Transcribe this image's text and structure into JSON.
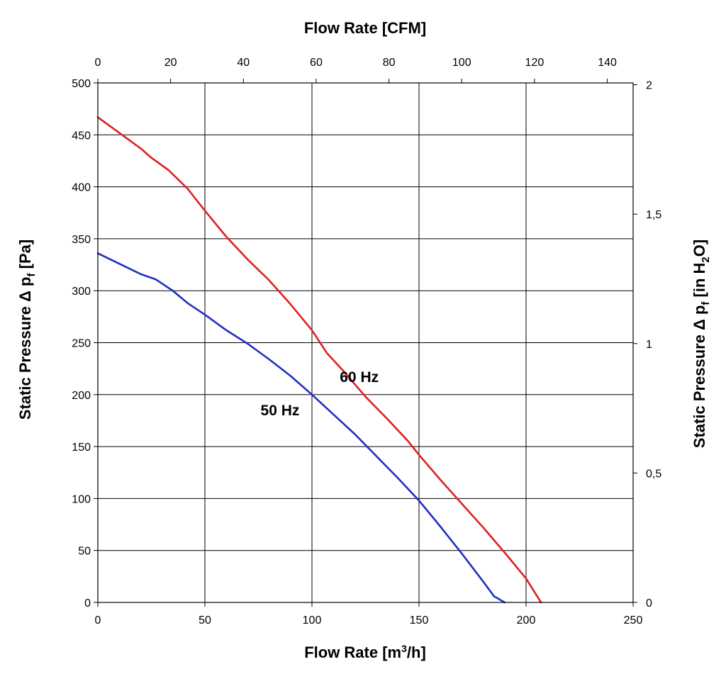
{
  "chart_data": {
    "type": "line",
    "title": "",
    "xlabel": "Flow Rate [m³/h]",
    "xlabel_parts": {
      "pre": "Flow Rate [m",
      "sup": "3",
      "post": "/h]"
    },
    "x2label": "Flow Rate [CFM]",
    "ylabel": "Static Pressure Δ pf [Pa]",
    "ylabel_parts": {
      "pre": "Static Pressure Δ p",
      "sub": "f",
      "post": " [Pa]"
    },
    "y2label": "Static Pressure Δ pf [in H2O]",
    "y2label_parts": {
      "pre": "Static Pressure Δ p",
      "sub1": "f",
      "mid": " [in H",
      "sub2": "2",
      "post": "O]"
    },
    "xlim": [
      0,
      250
    ],
    "ylim": [
      0,
      500
    ],
    "x2lim": [
      0,
      147.1
    ],
    "y2lim": [
      0,
      2.007
    ],
    "x_ticks": [
      "0",
      "50",
      "100",
      "150",
      "200",
      "250"
    ],
    "y_ticks": [
      "0",
      "50",
      "100",
      "150",
      "200",
      "250",
      "300",
      "350",
      "400",
      "450",
      "500"
    ],
    "x2_ticks": [
      "0",
      "20",
      "40",
      "60",
      "80",
      "100",
      "120",
      "140"
    ],
    "y2_ticks": [
      "0",
      "0,5",
      "1",
      "1,5",
      "2"
    ],
    "grid": true,
    "series": [
      {
        "name": "60 Hz",
        "color": "#e02020",
        "x": [
          0,
          10,
          20,
          25,
          33,
          42,
          50,
          60,
          70,
          80,
          90,
          100,
          107,
          115,
          125,
          135,
          145,
          150,
          160,
          170,
          180,
          190,
          200,
          207
        ],
        "y": [
          467,
          452,
          437,
          428,
          416,
          398,
          377,
          352,
          330,
          310,
          287,
          262,
          240,
          222,
          198,
          177,
          155,
          142,
          118,
          95,
          72,
          48,
          23,
          0
        ]
      },
      {
        "name": "50 Hz",
        "color": "#2030c0",
        "x": [
          0,
          10,
          20,
          27,
          35,
          42,
          50,
          60,
          70,
          80,
          90,
          100,
          110,
          120,
          130,
          140,
          150,
          160,
          170,
          180,
          185,
          190
        ],
        "y": [
          336,
          326,
          316,
          311,
          300,
          288,
          277,
          262,
          249,
          234,
          218,
          200,
          181,
          162,
          141,
          120,
          98,
          73,
          47,
          20,
          6,
          0
        ]
      }
    ],
    "annotations": [
      {
        "text": "60 Hz",
        "x": 113,
        "y": 212
      },
      {
        "text": "50 Hz",
        "x": 76,
        "y": 180
      }
    ]
  }
}
